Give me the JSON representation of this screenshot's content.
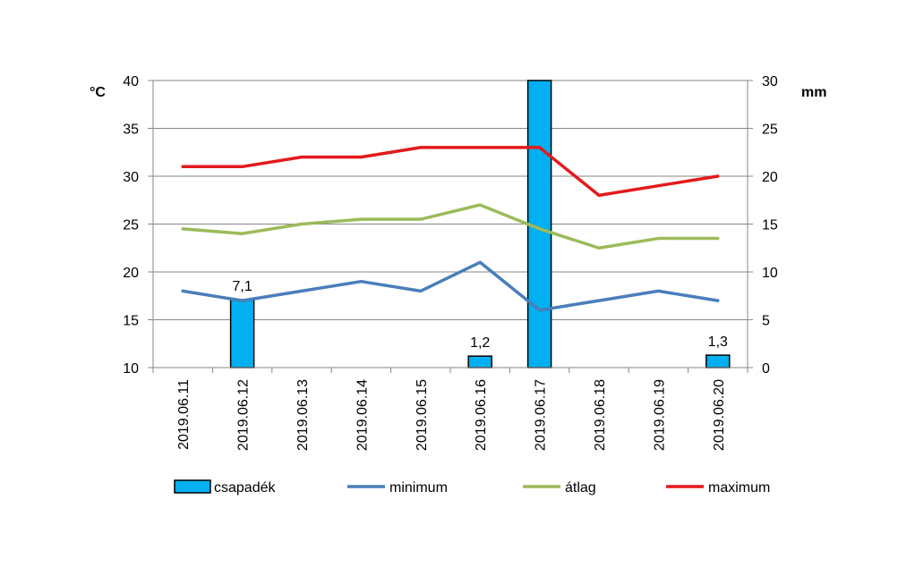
{
  "chart_data": {
    "type": "bar+line",
    "categories": [
      "2019.06.11",
      "2019.06.12",
      "2019.06.13",
      "2019.06.14",
      "2019.06.15",
      "2019.06.16",
      "2019.06.17",
      "2019.06.18",
      "2019.06.19",
      "2019.06.20"
    ],
    "y_left": {
      "unit": "°C",
      "range": [
        10,
        40
      ],
      "ticks": [
        10,
        15,
        20,
        25,
        30,
        35,
        40
      ]
    },
    "y_right": {
      "unit": "mm",
      "range": [
        0,
        30
      ],
      "ticks": [
        0,
        5,
        10,
        15,
        20,
        25,
        30
      ]
    },
    "bars": {
      "name": "csapadék",
      "axis": "right",
      "color": "#00b0f0",
      "values": [
        0,
        7.1,
        0,
        0,
        0,
        1.2,
        30,
        0,
        0,
        1.3
      ],
      "labels": [
        "",
        "7,1",
        "",
        "",
        "",
        "1,2",
        "",
        "",
        "",
        "1,3"
      ]
    },
    "series": [
      {
        "name": "minimum",
        "axis": "left",
        "color": "#4a7ebb",
        "values": [
          18,
          17,
          18,
          19,
          18,
          21,
          16,
          17,
          18,
          17
        ]
      },
      {
        "name": "átlag",
        "axis": "left",
        "color": "#9bbb59",
        "values": [
          24.5,
          24,
          25,
          25.5,
          25.5,
          27,
          24.5,
          22.5,
          23.5,
          23.5
        ]
      },
      {
        "name": "maximum",
        "axis": "left",
        "color": "#e31a1c",
        "values": [
          31,
          31,
          32,
          32,
          33,
          33,
          33,
          28,
          29,
          30
        ]
      }
    ],
    "legend": "bottom",
    "grid": true
  }
}
